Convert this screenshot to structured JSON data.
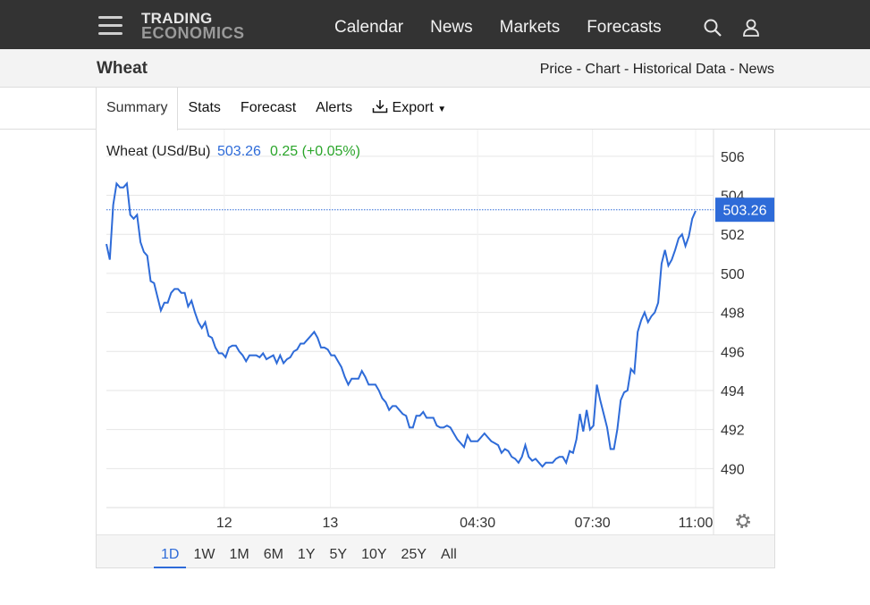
{
  "header": {
    "logo_line1": "TRADING",
    "logo_line2": "ECONOMICS",
    "nav": [
      "Calendar",
      "News",
      "Markets",
      "Forecasts"
    ]
  },
  "subheader": {
    "title": "Wheat",
    "links": "Price - Chart - Historical Data - News"
  },
  "tabs": [
    "Summary",
    "Stats",
    "Forecast",
    "Alerts",
    "Export"
  ],
  "active_tab": "Summary",
  "ranges": [
    "1D",
    "1W",
    "1M",
    "6M",
    "1Y",
    "5Y",
    "10Y",
    "25Y",
    "All"
  ],
  "active_range": "1D",
  "colors": {
    "line": "#2e6bd8",
    "change": "#2aa52a",
    "grid": "#e6e6e6",
    "price_tag": "#2e6bd8"
  },
  "chart_data": {
    "type": "line",
    "title": "Wheat (USd/Bu)",
    "last_value": "503.26",
    "change": "0.25 (+0.05%)",
    "ylim": [
      488,
      507
    ],
    "yticks": [
      490,
      492,
      494,
      496,
      498,
      500,
      502,
      504,
      506
    ],
    "x_ticks": [
      {
        "label": "12",
        "t": 0.2
      },
      {
        "label": "13",
        "t": 0.38
      },
      {
        "label": "04:30",
        "t": 0.63
      },
      {
        "label": "07:30",
        "t": 0.825
      },
      {
        "label": "11:00",
        "t": 1.0
      }
    ],
    "series": [
      {
        "values": [
          501.5,
          500.7,
          503.5,
          504.6,
          504.4,
          504.4,
          504.6,
          503.0,
          502.8,
          503.0,
          501.6,
          501.1,
          500.9,
          499.6,
          499.5,
          498.8,
          498.1,
          498.5,
          498.5,
          499.0,
          499.2,
          499.2,
          499.0,
          499.0,
          498.3,
          498.6,
          498.0,
          497.5,
          497.2,
          497.5,
          496.8,
          496.7,
          496.2,
          495.9,
          495.9,
          495.7,
          496.2,
          496.3,
          496.3,
          496.0,
          495.8,
          495.5,
          495.8,
          495.8,
          495.8,
          495.7,
          495.9,
          495.6,
          495.7,
          495.8,
          495.4,
          495.8,
          495.4,
          495.6,
          495.7,
          496.0,
          496.1,
          496.4,
          496.4,
          496.6,
          496.8,
          497.0,
          496.7,
          496.2,
          496.2,
          496.1,
          495.8,
          495.8,
          495.5,
          495.2,
          494.7,
          494.3,
          494.6,
          494.6,
          494.6,
          495.0,
          494.7,
          494.3,
          494.3,
          494.3,
          494.0,
          493.6,
          493.4,
          493.0,
          493.2,
          493.2,
          493.0,
          492.8,
          492.7,
          492.1,
          492.1,
          492.7,
          492.7,
          492.9,
          492.6,
          492.6,
          492.6,
          492.2,
          492.1,
          492.1,
          492.2,
          492.1,
          491.8,
          491.5,
          491.3,
          491.1,
          491.7,
          491.4,
          491.4,
          491.4,
          491.6,
          491.8,
          491.6,
          491.4,
          491.3,
          491.2,
          490.8,
          491.0,
          490.9,
          490.6,
          490.5,
          490.3,
          490.6,
          491.2,
          490.6,
          490.4,
          490.5,
          490.3,
          490.1,
          490.3,
          490.3,
          490.3,
          490.5,
          490.6,
          490.6,
          490.3,
          490.9,
          490.8,
          491.5,
          492.8,
          491.9,
          493.0,
          492.0,
          492.2,
          494.3,
          493.5,
          492.8,
          492.1,
          491.0,
          491.0,
          492.0,
          493.5,
          493.9,
          494.0,
          495.1,
          494.9,
          497.0,
          497.6,
          498.0,
          497.5,
          497.8,
          498.0,
          498.5,
          500.5,
          501.2,
          500.4,
          500.7,
          501.2,
          501.8,
          502.0,
          501.4,
          501.9,
          502.8,
          503.2
        ]
      }
    ]
  }
}
